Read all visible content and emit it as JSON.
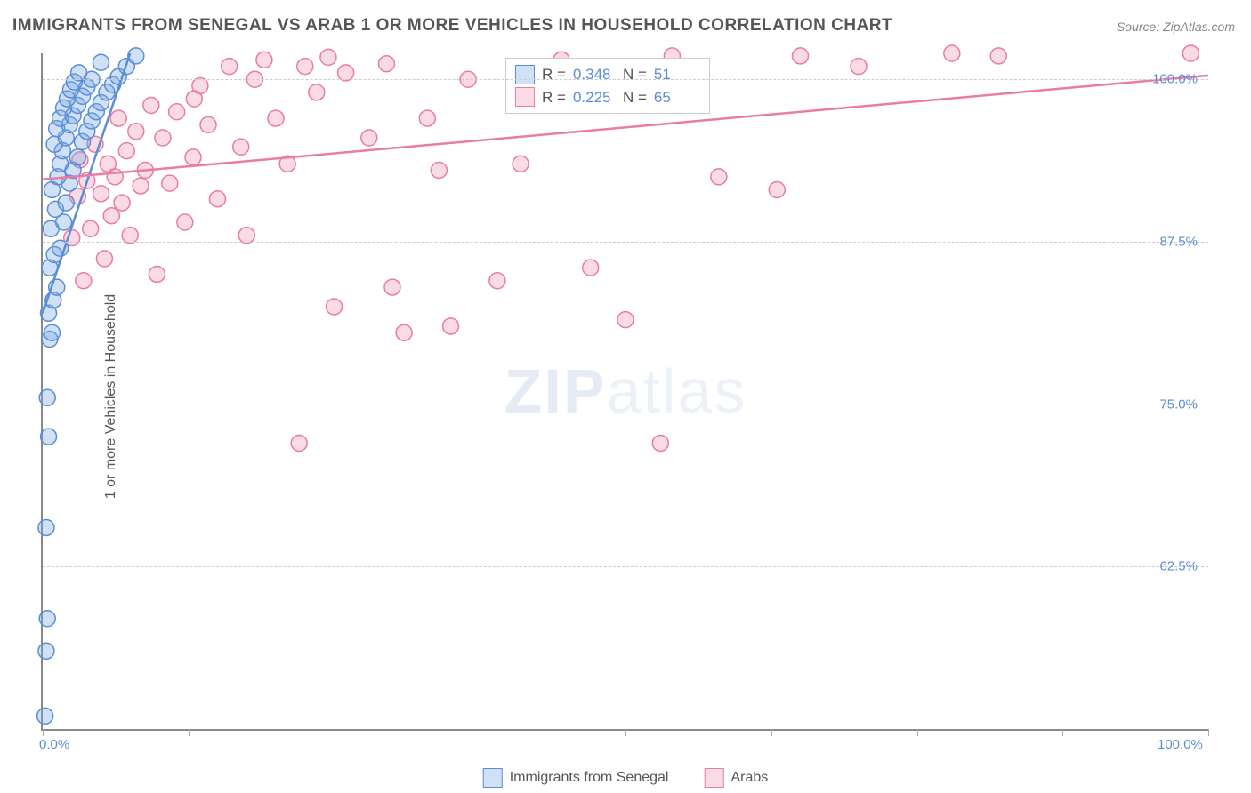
{
  "title": "IMMIGRANTS FROM SENEGAL VS ARAB 1 OR MORE VEHICLES IN HOUSEHOLD CORRELATION CHART",
  "source": "Source: ZipAtlas.com",
  "ylabel": "1 or more Vehicles in Household",
  "watermark_a": "ZIP",
  "watermark_b": "atlas",
  "chart": {
    "type": "scatter",
    "xlim": [
      0,
      100
    ],
    "ylim": [
      50,
      102
    ],
    "x_ticks": [
      0,
      12.5,
      25,
      37.5,
      50,
      62.5,
      75,
      87.5,
      100
    ],
    "x_tick_labels": {
      "0": "0.0%",
      "100": "100.0%"
    },
    "y_gridlines": [
      62.5,
      75,
      87.5,
      100
    ],
    "y_tick_labels": {
      "62.5": "62.5%",
      "75": "75.0%",
      "87.5": "87.5%",
      "100": "100.0%"
    },
    "background_color": "#ffffff",
    "grid_color": "#cccccc",
    "title_color": "#555555",
    "title_fontsize": 19,
    "label_fontsize": 16,
    "tick_color": "#5b8dd6",
    "tick_fontsize": 15,
    "marker_radius": 9,
    "marker_stroke_width": 1.5,
    "line_width": 2.5,
    "series": [
      {
        "name": "Immigrants from Senegal",
        "fill": "rgba(120, 170, 230, 0.35)",
        "stroke": "#5b8dd6",
        "R": "0.348",
        "N": "51",
        "trend": {
          "x1": 0,
          "y1": 82,
          "x2": 7.5,
          "y2": 102
        },
        "points": [
          [
            0.2,
            51.0
          ],
          [
            0.3,
            56.0
          ],
          [
            0.4,
            58.5
          ],
          [
            0.3,
            65.5
          ],
          [
            0.5,
            72.5
          ],
          [
            0.4,
            75.5
          ],
          [
            0.6,
            80.0
          ],
          [
            0.8,
            80.5
          ],
          [
            0.5,
            82.0
          ],
          [
            0.9,
            83.0
          ],
          [
            1.2,
            84.0
          ],
          [
            0.6,
            85.5
          ],
          [
            1.0,
            86.5
          ],
          [
            1.5,
            87.0
          ],
          [
            0.7,
            88.5
          ],
          [
            1.8,
            89.0
          ],
          [
            1.1,
            90.0
          ],
          [
            2.0,
            90.5
          ],
          [
            0.8,
            91.5
          ],
          [
            2.3,
            92.0
          ],
          [
            1.3,
            92.5
          ],
          [
            2.6,
            93.0
          ],
          [
            1.5,
            93.5
          ],
          [
            3.0,
            94.0
          ],
          [
            1.7,
            94.5
          ],
          [
            1.0,
            95.0
          ],
          [
            3.4,
            95.2
          ],
          [
            2.0,
            95.5
          ],
          [
            3.8,
            96.0
          ],
          [
            1.2,
            96.2
          ],
          [
            2.3,
            96.5
          ],
          [
            4.2,
            96.8
          ],
          [
            1.5,
            97.0
          ],
          [
            2.6,
            97.2
          ],
          [
            4.6,
            97.5
          ],
          [
            1.8,
            97.8
          ],
          [
            3.0,
            98.0
          ],
          [
            5.0,
            98.2
          ],
          [
            2.1,
            98.5
          ],
          [
            3.4,
            98.7
          ],
          [
            5.5,
            99.0
          ],
          [
            2.4,
            99.2
          ],
          [
            3.8,
            99.4
          ],
          [
            6.0,
            99.6
          ],
          [
            2.7,
            99.8
          ],
          [
            4.2,
            100.0
          ],
          [
            6.5,
            100.2
          ],
          [
            3.1,
            100.5
          ],
          [
            7.2,
            101.0
          ],
          [
            5.0,
            101.3
          ],
          [
            8.0,
            101.8
          ]
        ]
      },
      {
        "name": "Arabs",
        "fill": "rgba(240, 150, 180, 0.35)",
        "stroke": "#e97ba5",
        "R": "0.225",
        "N": "65",
        "trend": {
          "x1": 0,
          "y1": 92.3,
          "x2": 100,
          "y2": 100.3
        },
        "points": [
          [
            2.5,
            87.8
          ],
          [
            3.0,
            91.0
          ],
          [
            3.2,
            93.8
          ],
          [
            3.5,
            84.5
          ],
          [
            3.8,
            92.2
          ],
          [
            4.1,
            88.5
          ],
          [
            4.5,
            95.0
          ],
          [
            5.0,
            91.2
          ],
          [
            5.3,
            86.2
          ],
          [
            5.6,
            93.5
          ],
          [
            5.9,
            89.5
          ],
          [
            6.2,
            92.5
          ],
          [
            6.5,
            97.0
          ],
          [
            6.8,
            90.5
          ],
          [
            7.2,
            94.5
          ],
          [
            7.5,
            88.0
          ],
          [
            8.0,
            96.0
          ],
          [
            8.4,
            91.8
          ],
          [
            8.8,
            93.0
          ],
          [
            9.3,
            98.0
          ],
          [
            9.8,
            85.0
          ],
          [
            10.3,
            95.5
          ],
          [
            10.9,
            92.0
          ],
          [
            11.5,
            97.5
          ],
          [
            12.2,
            89.0
          ],
          [
            12.9,
            94.0
          ],
          [
            13.5,
            99.5
          ],
          [
            14.2,
            96.5
          ],
          [
            15.0,
            90.8
          ],
          [
            16.0,
            101.0
          ],
          [
            13.0,
            98.5
          ],
          [
            17.0,
            94.8
          ],
          [
            17.5,
            88.0
          ],
          [
            18.2,
            100.0
          ],
          [
            19.0,
            101.5
          ],
          [
            20.0,
            97.0
          ],
          [
            21.0,
            93.5
          ],
          [
            22.0,
            72.0
          ],
          [
            22.5,
            101.0
          ],
          [
            23.5,
            99.0
          ],
          [
            24.5,
            101.7
          ],
          [
            25.0,
            82.5
          ],
          [
            26.0,
            100.5
          ],
          [
            28.0,
            95.5
          ],
          [
            29.5,
            101.2
          ],
          [
            30.0,
            84.0
          ],
          [
            31.0,
            80.5
          ],
          [
            33.0,
            97.0
          ],
          [
            34.0,
            93.0
          ],
          [
            35.0,
            81.0
          ],
          [
            36.5,
            100.0
          ],
          [
            39.0,
            84.5
          ],
          [
            41.0,
            93.5
          ],
          [
            44.5,
            101.5
          ],
          [
            47.0,
            85.5
          ],
          [
            50.0,
            81.5
          ],
          [
            53.0,
            72.0
          ],
          [
            54.0,
            101.8
          ],
          [
            58.0,
            92.5
          ],
          [
            70.0,
            101.0
          ],
          [
            63.0,
            91.5
          ],
          [
            78.0,
            102.0
          ],
          [
            82.0,
            101.8
          ],
          [
            98.5,
            102.0
          ],
          [
            65.0,
            101.8
          ]
        ]
      }
    ]
  },
  "legend_box": {
    "rows": [
      {
        "swatch_fill": "rgba(120,170,230,0.35)",
        "swatch_stroke": "#5b8dd6",
        "r_label": "R =",
        "r_val": "0.348",
        "n_label": "N =",
        "n_val": "51"
      },
      {
        "swatch_fill": "rgba(240,150,180,0.35)",
        "swatch_stroke": "#e97ba5",
        "r_label": "R =",
        "r_val": "0.225",
        "n_label": "N =",
        "n_val": "65"
      }
    ]
  },
  "bottom_legend": [
    {
      "swatch_fill": "rgba(120,170,230,0.35)",
      "swatch_stroke": "#5b8dd6",
      "label": "Immigrants from Senegal"
    },
    {
      "swatch_fill": "rgba(240,150,180,0.35)",
      "swatch_stroke": "#e97ba5",
      "label": "Arabs"
    }
  ]
}
